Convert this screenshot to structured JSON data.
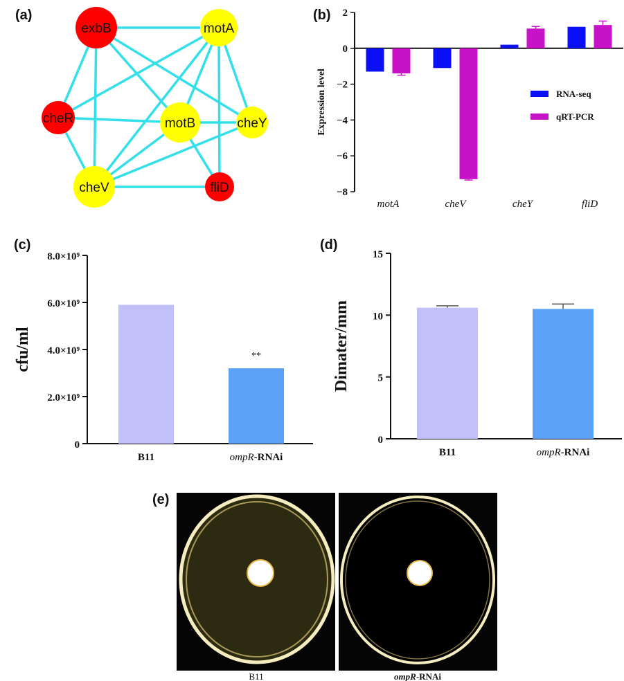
{
  "panel_labels": {
    "a": "(a)",
    "b": "(b)",
    "c": "(c)",
    "d": "(d)",
    "e": "(e)"
  },
  "network": {
    "edge_color": "#33e0ea",
    "nodes": [
      {
        "id": "exbB",
        "label": "exbB",
        "color": "#ff0000"
      },
      {
        "id": "motA",
        "label": "motA",
        "color": "#ffff00"
      },
      {
        "id": "cheR",
        "label": "cheR",
        "color": "#ff0000"
      },
      {
        "id": "motB",
        "label": "motB",
        "color": "#ffff00"
      },
      {
        "id": "cheY",
        "label": "cheY",
        "color": "#ffff00"
      },
      {
        "id": "cheV",
        "label": "cheV",
        "color": "#ffff00"
      },
      {
        "id": "fliD",
        "label": "fliD",
        "color": "#ff0000"
      }
    ],
    "edges": [
      [
        "exbB",
        "motA"
      ],
      [
        "exbB",
        "cheR"
      ],
      [
        "exbB",
        "motB"
      ],
      [
        "exbB",
        "cheY"
      ],
      [
        "exbB",
        "cheV"
      ],
      [
        "motA",
        "cheR"
      ],
      [
        "motA",
        "motB"
      ],
      [
        "motA",
        "cheY"
      ],
      [
        "motA",
        "cheV"
      ],
      [
        "motA",
        "fliD"
      ],
      [
        "cheR",
        "motB"
      ],
      [
        "cheR",
        "cheV"
      ],
      [
        "motB",
        "cheY"
      ],
      [
        "motB",
        "cheV"
      ],
      [
        "motB",
        "fliD"
      ],
      [
        "cheY",
        "cheV"
      ],
      [
        "cheV",
        "fliD"
      ]
    ]
  },
  "chart_data": [
    {
      "panel": "b",
      "type": "bar",
      "categories": [
        "motA",
        "cheV",
        "cheY",
        "fliD"
      ],
      "series": [
        {
          "name": "RNA-seq",
          "color": "#0a0ff5",
          "values": [
            -1.3,
            -1.1,
            0.2,
            1.2
          ],
          "errors": [
            0,
            0,
            0,
            0
          ]
        },
        {
          "name": "qRT-PCR",
          "color": "#c812c8",
          "values": [
            -1.4,
            -7.3,
            1.1,
            1.3
          ],
          "errors": [
            0.1,
            0.05,
            0.12,
            0.22
          ]
        }
      ],
      "ylabel": "Expression level",
      "ylim": [
        -8,
        2
      ],
      "yticks": [
        "2",
        "0",
        "−2",
        "−4",
        "−6",
        "−8"
      ],
      "legend_position": "right"
    },
    {
      "panel": "c",
      "type": "bar",
      "categories": [
        "B11",
        "ompR-RNAi"
      ],
      "category_labels": [
        {
          "italic": "",
          "normal": "B11"
        },
        {
          "italic": "ompR",
          "normal": "-RNAi"
        }
      ],
      "values": [
        5900000000.0,
        3200000000.0
      ],
      "colors": [
        "#c2c0f8",
        "#5aa1f7"
      ],
      "annotations": [
        "",
        "**"
      ],
      "ylabel": "cfu/ml",
      "ylim": [
        0,
        8000000000.0
      ],
      "yticks": [
        "0",
        "2.0×10⁹",
        "4.0×10⁹",
        "6.0×10⁹",
        "8.0×10⁹"
      ]
    },
    {
      "panel": "d",
      "type": "bar",
      "categories": [
        "B11",
        "ompR-RNAi"
      ],
      "category_labels": [
        {
          "italic": "",
          "normal": "B11"
        },
        {
          "italic": "ompR",
          "normal": "-RNAi"
        }
      ],
      "values": [
        10.6,
        10.5
      ],
      "errors": [
        0.15,
        0.4
      ],
      "colors": [
        "#c2c0f8",
        "#5aa1f7"
      ],
      "ylabel": "Dimater/mm",
      "ylim": [
        0,
        15
      ],
      "yticks": [
        "0",
        "5",
        "10",
        "15"
      ]
    }
  ],
  "photos": {
    "captions": [
      {
        "italic": "",
        "normal": "B11"
      },
      {
        "italic": "ompR",
        "normal": "-RNAi"
      }
    ]
  }
}
